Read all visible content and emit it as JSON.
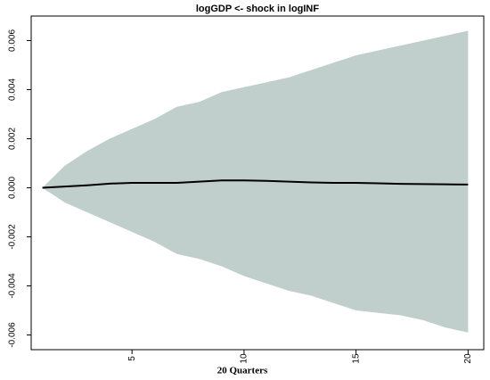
{
  "chart_data": {
    "type": "line",
    "title": "logGDP <- shock in logINF",
    "x_label": "20 Quarters",
    "x": [
      1,
      2,
      3,
      4,
      5,
      6,
      7,
      8,
      9,
      10,
      11,
      12,
      13,
      14,
      15,
      16,
      17,
      18,
      19,
      20
    ],
    "values": [
      0,
      5e-05,
      0.0001,
      0.00017,
      0.0002,
      0.0002,
      0.0002,
      0.00025,
      0.0003,
      0.0003,
      0.00028,
      0.00025,
      0.00022,
      0.0002,
      0.0002,
      0.00018,
      0.00016,
      0.00015,
      0.00014,
      0.00013
    ],
    "color": "#000000",
    "band": {
      "color": "#c0cfcc",
      "upper": [
        0,
        0.0009,
        0.0015,
        0.002,
        0.0024,
        0.0028,
        0.0033,
        0.0035,
        0.0039,
        0.0041,
        0.0043,
        0.0045,
        0.0048,
        0.0051,
        0.0054,
        0.0056,
        0.0058,
        0.006,
        0.0062,
        0.0064
      ],
      "lower": [
        0,
        -0.0006,
        -0.001,
        -0.0014,
        -0.0018,
        -0.0022,
        -0.0027,
        -0.0029,
        -0.0032,
        -0.0036,
        -0.0039,
        -0.0042,
        -0.0044,
        -0.0047,
        -0.005,
        -0.0051,
        -0.0052,
        -0.0054,
        -0.0057,
        -0.0059
      ]
    },
    "xlim": [
      0.5,
      20.7
    ],
    "xticks": [
      5,
      10,
      15,
      20
    ],
    "ylim": [
      -0.0066,
      0.007
    ],
    "yticks": [
      -0.006,
      -0.004,
      -0.002,
      {
        "value": 0,
        "label": "0.000"
      },
      0.002,
      0.004,
      0.006
    ],
    "grid": false
  }
}
